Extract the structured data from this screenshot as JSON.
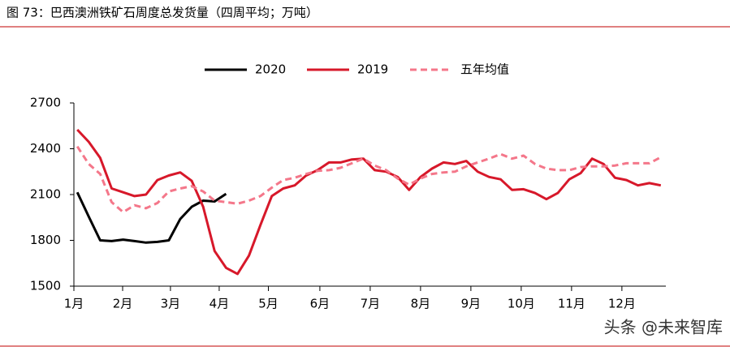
{
  "chart_data": {
    "type": "line",
    "title": "图 73：巴西澳洲铁矿石周度总发货量（四周平均；万吨）",
    "x": [
      1,
      2,
      3,
      4,
      5,
      6,
      7,
      8,
      9,
      10,
      11,
      12,
      13,
      14,
      15,
      16,
      17,
      18,
      19,
      20,
      21,
      22,
      23,
      24,
      25,
      26,
      27,
      28,
      29,
      30,
      31,
      32,
      33,
      34,
      35,
      36,
      37,
      38,
      39,
      40,
      41,
      42,
      43,
      44,
      45,
      46,
      47,
      48,
      49,
      50,
      51,
      52
    ],
    "xlim": [
      0.7,
      52.3
    ],
    "xticks": [
      {
        "value": 0.7,
        "label": "1月"
      },
      {
        "value": 4.96,
        "label": "2月"
      },
      {
        "value": 9.14,
        "label": "3月"
      },
      {
        "value": 13.4,
        "label": "4月"
      },
      {
        "value": 17.7,
        "label": "5月"
      },
      {
        "value": 22.2,
        "label": "6月"
      },
      {
        "value": 26.6,
        "label": "7月"
      },
      {
        "value": 31.0,
        "label": "8月"
      },
      {
        "value": 35.4,
        "label": "9月"
      },
      {
        "value": 39.8,
        "label": "10月"
      },
      {
        "value": 44.2,
        "label": "11月"
      },
      {
        "value": 48.6,
        "label": "12月"
      }
    ],
    "ylim": [
      1500,
      2700
    ],
    "yticks": [
      1500,
      1800,
      2100,
      2400,
      2700
    ],
    "grid": false,
    "series": [
      {
        "name": "2020",
        "color": "#000000",
        "dash": false,
        "values": [
          2115,
          1955,
          1800,
          1795,
          1805,
          1795,
          1785,
          1790,
          1800,
          1940,
          2020,
          2060,
          2055,
          2105,
          null,
          null,
          null,
          null,
          null,
          null,
          null,
          null,
          null,
          null,
          null,
          null,
          null,
          null,
          null,
          null,
          null,
          null,
          null,
          null,
          null,
          null,
          null,
          null,
          null,
          null,
          null,
          null,
          null,
          null,
          null,
          null,
          null,
          null,
          null,
          null,
          null,
          null
        ]
      },
      {
        "name": "2019",
        "color": "#d7182a",
        "dash": false,
        "values": [
          2525,
          2445,
          2340,
          2140,
          2115,
          2090,
          2100,
          2195,
          2225,
          2245,
          2190,
          2020,
          1730,
          1620,
          1580,
          1700,
          1900,
          2090,
          2140,
          2160,
          2225,
          2260,
          2310,
          2310,
          2330,
          2335,
          2260,
          2250,
          2215,
          2130,
          2215,
          2270,
          2310,
          2300,
          2320,
          2250,
          2215,
          2200,
          2130,
          2135,
          2110,
          2070,
          2110,
          2200,
          2240,
          2335,
          2300,
          2210,
          2195,
          2160,
          2175,
          2160
        ]
      },
      {
        "name": "五年均值",
        "color": "#f4778a",
        "dash": true,
        "values": [
          2415,
          2300,
          2235,
          2050,
          1985,
          2030,
          2010,
          2045,
          2120,
          2140,
          2155,
          2120,
          2060,
          2050,
          2040,
          2060,
          2090,
          2145,
          2195,
          2210,
          2235,
          2255,
          2260,
          2275,
          2305,
          2335,
          2290,
          2260,
          2205,
          2165,
          2205,
          2235,
          2245,
          2250,
          2285,
          2310,
          2335,
          2365,
          2335,
          2355,
          2300,
          2270,
          2260,
          2260,
          2280,
          2285,
          2285,
          2290,
          2305,
          2305,
          2305,
          2345
        ]
      }
    ]
  },
  "watermark": "头条 @未来智库"
}
